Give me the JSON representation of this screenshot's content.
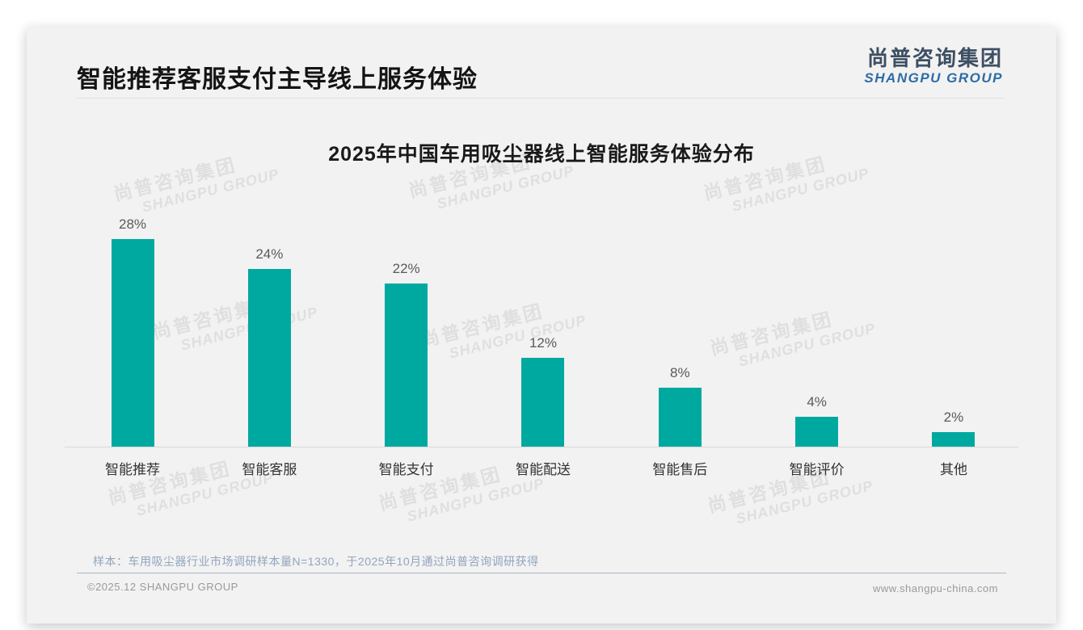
{
  "header": {
    "title": "智能推荐客服支付主导线上服务体验",
    "logo": {
      "cn": "尚普咨询集团",
      "en": "SHANGPU GROUP"
    }
  },
  "watermark": {
    "line1": "尚普咨询集团",
    "line2": "SHANGPU GROUP"
  },
  "chart_data": {
    "type": "bar",
    "title": "2025年中国车用吸尘器线上智能服务体验分布",
    "categories": [
      "智能推荐",
      "智能客服",
      "智能支付",
      "智能配送",
      "智能售后",
      "智能评价",
      "其他"
    ],
    "values": [
      28,
      24,
      22,
      12,
      8,
      4,
      2
    ],
    "value_labels": [
      "28%",
      "24%",
      "22%",
      "12%",
      "8%",
      "4%",
      "2%"
    ],
    "unit": "%",
    "bar_color": "#00a9a0",
    "ylim": [
      0,
      30
    ],
    "grid": false,
    "legend": false,
    "xlabel": "",
    "ylabel": ""
  },
  "footnote": {
    "sample_note": "样本：车用吸尘器行业市场调研样本量N=1330，于2025年10月通过尚普咨询调研获得"
  },
  "footer": {
    "copyright": "©2025.12 SHANGPU GROUP",
    "website": "www.shangpu-china.com"
  },
  "colors": {
    "bar": "#00a9a0",
    "card_background": "#f2f2f2",
    "brand_cn": "#3d4f63",
    "brand_en": "#2e6ca5",
    "note_text": "#91a5bd"
  }
}
